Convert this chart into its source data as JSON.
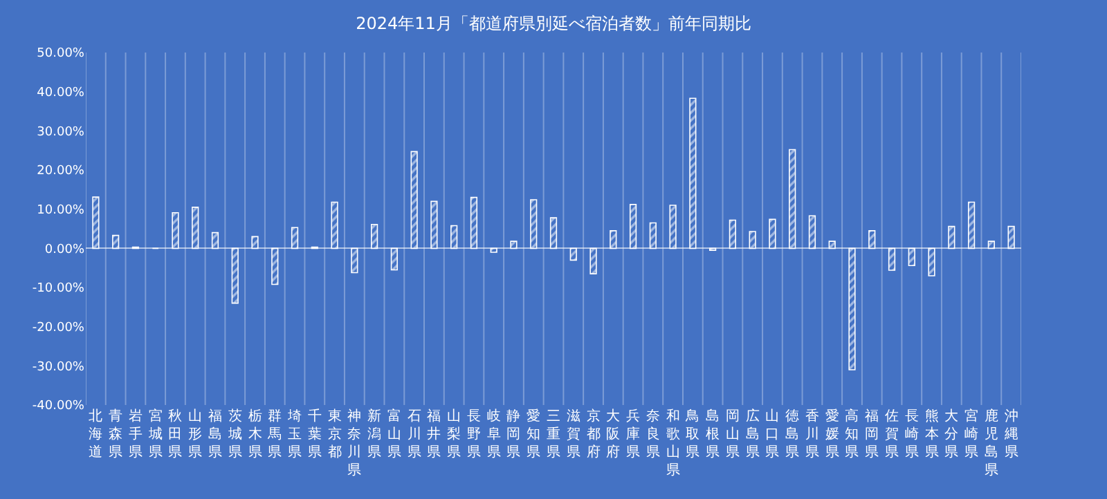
{
  "chart_data": {
    "type": "bar",
    "title": "2024年11月「都道府県別延べ宿泊者数」前年同期比",
    "categories": [
      "北海道",
      "青森県",
      "岩手県",
      "宮城県",
      "秋田県",
      "山形県",
      "福島県",
      "茨城県",
      "栃木県",
      "群馬県",
      "埼玉県",
      "千葉県",
      "東京都",
      "神奈川県",
      "新潟県",
      "富山県",
      "石川県",
      "福井県",
      "山梨県",
      "長野県",
      "岐阜県",
      "静岡県",
      "愛知県",
      "三重県",
      "滋賀県",
      "京都府",
      "大阪府",
      "兵庫県",
      "奈良県",
      "和歌山県",
      "鳥取県",
      "島根県",
      "岡山県",
      "広島県",
      "山口県",
      "徳島県",
      "香川県",
      "愛媛県",
      "高知県",
      "福岡県",
      "佐賀県",
      "長崎県",
      "熊本県",
      "大分県",
      "宮崎県",
      "鹿児島県",
      "沖縄県"
    ],
    "values": [
      13.1,
      3.3,
      0.3,
      0,
      9.1,
      10.5,
      4.0,
      -14.0,
      3.0,
      -9.2,
      5.3,
      0.3,
      11.8,
      -6.2,
      6.1,
      -5.5,
      24.7,
      12.0,
      5.8,
      13.0,
      -1.0,
      1.8,
      12.4,
      7.8,
      -3.0,
      -6.5,
      4.5,
      11.2,
      6.5,
      11.0,
      38.3,
      -0.5,
      7.2,
      4.3,
      7.4,
      25.2,
      8.3,
      1.8,
      -31.0,
      4.5,
      -5.6,
      -4.4,
      -7.0,
      5.6,
      11.8,
      1.8,
      5.6
    ],
    "color": "#ffffff",
    "ylim": [
      -40,
      50
    ],
    "yticks": [
      {
        "value": -40,
        "label": "-40.00%"
      },
      {
        "value": -30,
        "label": "-30.00%"
      },
      {
        "value": -20,
        "label": "-20.00%"
      },
      {
        "value": -10,
        "label": "-10.00%"
      },
      {
        "value": 0,
        "label": "0.00%"
      },
      {
        "value": 10,
        "label": "10.00%"
      },
      {
        "value": 20,
        "label": "20.00%"
      },
      {
        "value": 30,
        "label": "30.00%"
      },
      {
        "value": 40,
        "label": "40.00%"
      },
      {
        "value": 50,
        "label": "50.00%"
      }
    ],
    "grid": "x",
    "legend": false
  }
}
